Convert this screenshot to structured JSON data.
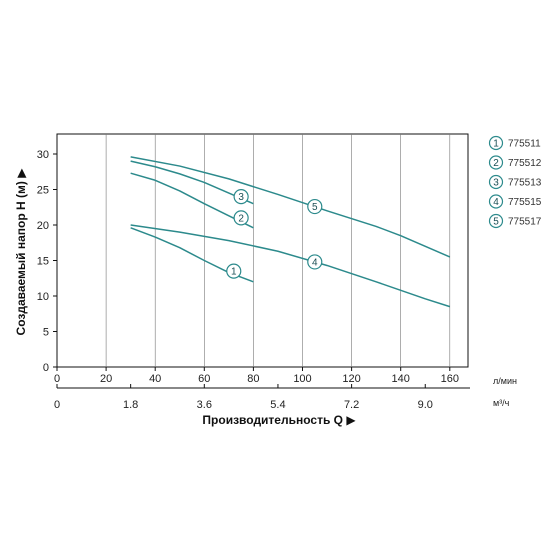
{
  "chart_data": {
    "type": "line",
    "title": "",
    "ylabel": "Создаваемый напор H (м) ▶",
    "xlabel": "Производительность Q ▶",
    "x_unit_primary": "л/мин",
    "x_unit_secondary": "м³/ч",
    "xlim": [
      0,
      168
    ],
    "ylim": [
      0,
      32
    ],
    "x_ticks": [
      "0",
      "20",
      "40",
      "60",
      "80",
      "100",
      "120",
      "140",
      "160"
    ],
    "x_ticks_values": [
      0,
      20,
      40,
      60,
      80,
      100,
      120,
      140,
      160
    ],
    "x2_ticks": [
      "0",
      "1.8",
      "3.6",
      "5.4",
      "7.2",
      "9.0"
    ],
    "x2_ticks_values": [
      0,
      30,
      60,
      90,
      120,
      150
    ],
    "y_ticks": [
      "0",
      "5",
      "10",
      "15",
      "20",
      "25",
      "30"
    ],
    "y_ticks_values": [
      0,
      5,
      10,
      15,
      20,
      25,
      30
    ],
    "grid": "vertical",
    "legend_position": "right",
    "line_color": "#2c8a8c",
    "marker_stroke": "#2c8a8c",
    "series": [
      {
        "name": "775511",
        "marker": "1",
        "marker_at": [
          72,
          13.5
        ],
        "x": [
          30,
          40,
          50,
          60,
          70,
          80
        ],
        "y": [
          19.6,
          18.3,
          16.8,
          15.0,
          13.3,
          12.0
        ]
      },
      {
        "name": "775512",
        "marker": "2",
        "marker_at": [
          75,
          21
        ],
        "x": [
          30,
          40,
          50,
          60,
          70,
          80
        ],
        "y": [
          27.3,
          26.3,
          24.8,
          23.0,
          21.3,
          19.6
        ]
      },
      {
        "name": "775513",
        "marker": "3",
        "marker_at": [
          75,
          24
        ],
        "x": [
          30,
          40,
          50,
          60,
          70,
          80
        ],
        "y": [
          29.0,
          28.2,
          27.2,
          26.0,
          24.5,
          23.0
        ]
      },
      {
        "name": "775515",
        "marker": "4",
        "marker_at": [
          105,
          14.8
        ],
        "x": [
          30,
          50,
          70,
          90,
          110,
          130,
          150,
          160
        ],
        "y": [
          20.0,
          19.0,
          17.8,
          16.3,
          14.3,
          12.0,
          9.6,
          8.5
        ]
      },
      {
        "name": "775517",
        "marker": "5",
        "marker_at": [
          105,
          22.6
        ],
        "x": [
          30,
          50,
          70,
          90,
          110,
          130,
          140,
          150,
          160
        ],
        "y": [
          29.6,
          28.3,
          26.5,
          24.3,
          22.0,
          19.8,
          18.5,
          17.0,
          15.5
        ]
      }
    ]
  }
}
